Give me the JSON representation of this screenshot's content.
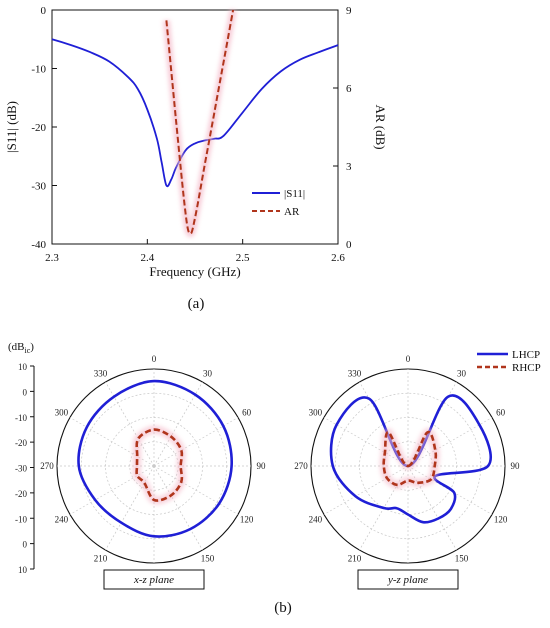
{
  "panels": {
    "a": "(a)",
    "b": "(b)"
  },
  "chart_data": [
    {
      "type": "line",
      "panel": "(a)",
      "xlabel": "Frequency (GHz)",
      "ylabel_left": "|S11| (dB)",
      "ylabel_right": "AR (dB)",
      "xlim": [
        2.3,
        2.6
      ],
      "ylim_left": [
        -40,
        0
      ],
      "ylim_right": [
        0,
        9
      ],
      "x_ticks": [
        "2.3",
        "2.4",
        "2.5",
        "2.6"
      ],
      "y_left_ticks": [
        "0",
        "-10",
        "-20",
        "-30",
        "-40"
      ],
      "y_right_ticks": [
        "9",
        "6",
        "3",
        "0"
      ],
      "legend": {
        "position": "lower-right",
        "entries": [
          "|S11|",
          "AR"
        ]
      },
      "series": [
        {
          "name": "|S11|",
          "axis": "left",
          "color": "#1f1fd6",
          "style": "solid",
          "x": [
            2.3,
            2.32,
            2.34,
            2.36,
            2.38,
            2.39,
            2.4,
            2.41,
            2.415,
            2.42,
            2.425,
            2.43,
            2.44,
            2.45,
            2.46,
            2.47,
            2.48,
            2.5,
            2.52,
            2.54,
            2.56,
            2.58,
            2.6
          ],
          "y": [
            -5.0,
            -6.0,
            -7.2,
            -8.8,
            -11.5,
            -13.5,
            -17.0,
            -22.0,
            -26.0,
            -30.0,
            -29.0,
            -27.0,
            -24.0,
            -22.8,
            -22.3,
            -22.0,
            -21.5,
            -17.5,
            -13.5,
            -10.5,
            -8.5,
            -7.2,
            -6.0
          ]
        },
        {
          "name": "AR",
          "axis": "right",
          "color": "#b0351c",
          "style": "dashed",
          "x": [
            2.42,
            2.43,
            2.44,
            2.445,
            2.45,
            2.46,
            2.47,
            2.48,
            2.49
          ],
          "y": [
            8.6,
            4.8,
            1.2,
            0.4,
            1.0,
            3.0,
            5.0,
            7.0,
            9.0
          ]
        }
      ]
    },
    {
      "type": "polar",
      "panel": "(b)",
      "label": "x-z plane",
      "unit_label": "(dB",
      "unit_sub": "ic",
      "unit_close": ")",
      "radial_ticks": [
        "10",
        "0",
        "-10",
        "-20",
        "-30",
        "-20",
        "-10",
        "0",
        "10"
      ],
      "angle_labels": [
        "0",
        "30",
        "60",
        "90",
        "120",
        "150",
        "210",
        "240",
        "270",
        "300",
        "330"
      ],
      "rlim": [
        -30,
        10
      ],
      "series": [
        {
          "name": "LHCP",
          "color": "#1f1fd6",
          "style": "solid",
          "theta_deg": [
            0,
            30,
            60,
            90,
            120,
            150,
            180,
            210,
            240,
            270,
            300,
            330
          ],
          "r_db": [
            5,
            4,
            3,
            2,
            1,
            0,
            -1,
            -3,
            -2,
            1,
            2,
            3
          ]
        },
        {
          "name": "RHCP",
          "color": "#b0351c",
          "style": "dashed",
          "theta_deg": [
            0,
            30,
            60,
            90,
            120,
            150,
            180,
            210,
            240,
            270,
            300,
            330
          ],
          "r_db": [
            -15,
            -16,
            -17,
            -19,
            -17,
            -16,
            -16,
            -22,
            -22,
            -23,
            -22,
            -17
          ]
        }
      ]
    },
    {
      "type": "polar",
      "panel": "(b)",
      "label": "y-z plane",
      "legend": {
        "position": "top-right",
        "entries": [
          "LHCP",
          "RHCP"
        ]
      },
      "angle_labels": [
        "0",
        "30",
        "60",
        "90",
        "120",
        "150",
        "210",
        "240",
        "270",
        "300",
        "330"
      ],
      "rlim": [
        -30,
        10
      ],
      "series": [
        {
          "name": "LHCP",
          "color": "#1f1fd6",
          "style": "solid",
          "theta_deg": [
            0,
            30,
            60,
            90,
            110,
            120,
            135,
            150,
            165,
            180,
            195,
            210,
            240,
            270,
            300,
            330
          ],
          "r_db": [
            -30,
            3,
            4,
            3,
            -18,
            -8,
            -5,
            -5,
            -6,
            -10,
            -12,
            -10,
            -5,
            1,
            4,
            2
          ],
          "note_dip_at": [
            0,
            110
          ]
        },
        {
          "name": "RHCP",
          "color": "#b0351c",
          "style": "dashed",
          "theta_deg": [
            0,
            30,
            60,
            90,
            120,
            150,
            180,
            210,
            240,
            270,
            300,
            330
          ],
          "r_db": [
            -30,
            -14,
            -17,
            -19,
            -19,
            -22,
            -24,
            -21,
            -20,
            -20,
            -19,
            -14
          ]
        }
      ]
    }
  ]
}
